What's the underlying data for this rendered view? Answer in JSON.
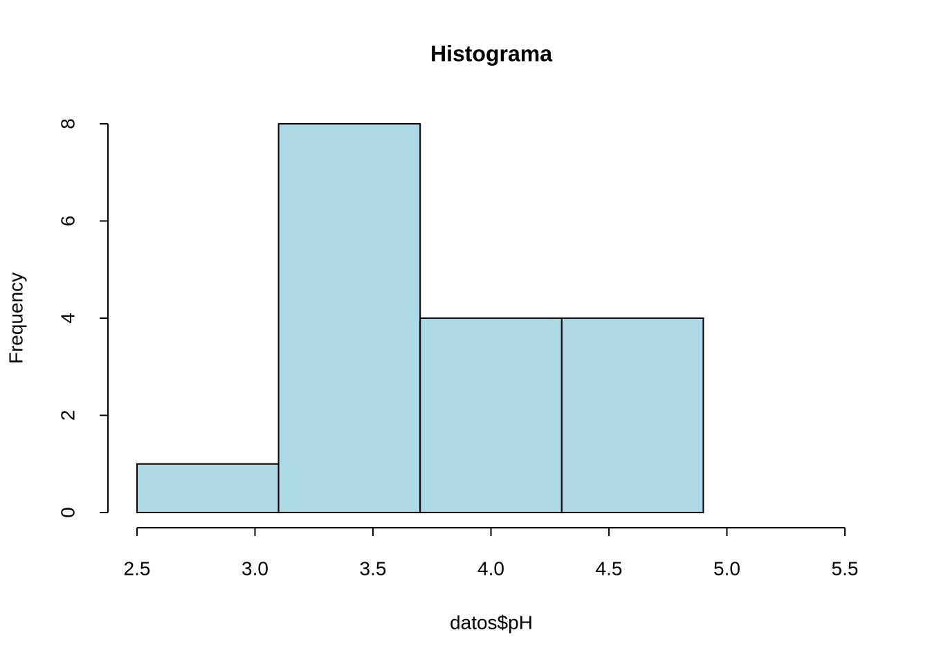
{
  "chart_data": {
    "type": "histogram",
    "title": "Histograma",
    "x_label": "datos$pH",
    "y_label": "Frequency",
    "bins": [
      2.5,
      3.1,
      3.7,
      4.3,
      4.9,
      5.5
    ],
    "values": [
      1,
      8,
      4,
      4,
      0
    ],
    "color": "#add8e6",
    "xlim": [
      2.5,
      5.5
    ],
    "xticks": [
      2.5,
      {
        "value": 3.0,
        "label": "3.0"
      },
      3.5,
      {
        "value": 4.0,
        "label": "4.0"
      },
      4.5,
      {
        "value": 5.0,
        "label": "5.0"
      },
      5.5
    ],
    "ylim": [
      0,
      8
    ],
    "yticks": [
      0,
      2,
      4,
      6,
      8
    ]
  }
}
